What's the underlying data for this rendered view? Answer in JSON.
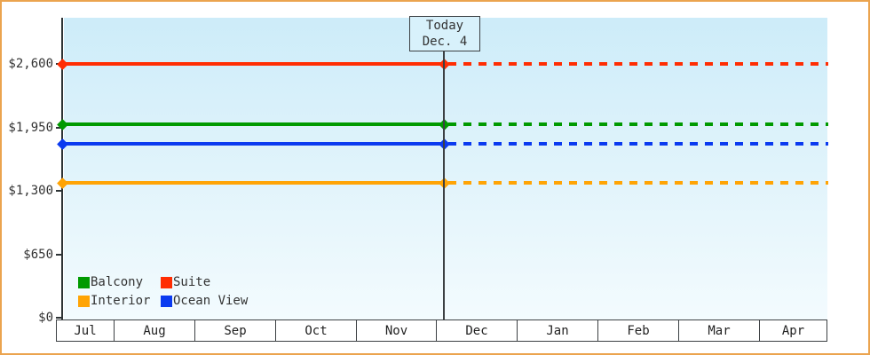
{
  "chart_data": {
    "type": "line",
    "title": "",
    "xlabel": "",
    "ylabel": "",
    "x_categories": [
      "Jul",
      "Aug",
      "Sep",
      "Oct",
      "Nov",
      "Dec",
      "Jan",
      "Feb",
      "Mar",
      "Apr"
    ],
    "ylim": [
      0,
      2600
    ],
    "y_ticks": [
      {
        "label": "$2,600",
        "value": 2600
      },
      {
        "label": "$1,950",
        "value": 1950
      },
      {
        "label": "$1,300",
        "value": 1300
      },
      {
        "label": "$650",
        "value": 650
      },
      {
        "label": "$0",
        "value": 0
      }
    ],
    "grid": false,
    "legend_position": "bottom-left-inside",
    "today_annotation": {
      "line1": "Today",
      "line2": "Dec. 4",
      "month": "Dec",
      "day": 4
    },
    "series": [
      {
        "name": "Suite",
        "color": "#ff2d03",
        "value": 2600,
        "style": "solid-then-dashed-after-today"
      },
      {
        "name": "Balcony",
        "color": "#009a00",
        "value": 1980,
        "style": "solid-then-dashed-after-today"
      },
      {
        "name": "Ocean View",
        "color": "#0a3af0",
        "value": 1780,
        "style": "solid-then-dashed-after-today"
      },
      {
        "name": "Interior",
        "color": "#ffa405",
        "value": 1380,
        "style": "solid-then-dashed-after-today"
      }
    ],
    "legend_items": [
      {
        "name": "Balcony",
        "color": "#009a00"
      },
      {
        "name": "Suite",
        "color": "#ff2d03"
      },
      {
        "name": "Interior",
        "color": "#ffa405"
      },
      {
        "name": "Ocean View",
        "color": "#0a3af0"
      }
    ],
    "colors": {
      "frame_border": "#eba44f",
      "plot_bg_top": "#cdecf9",
      "plot_bg_bottom": "#f3fbfe",
      "axis": "#2e3436",
      "today_box_fill": "#d8f1fb",
      "text": "#333333"
    }
  }
}
